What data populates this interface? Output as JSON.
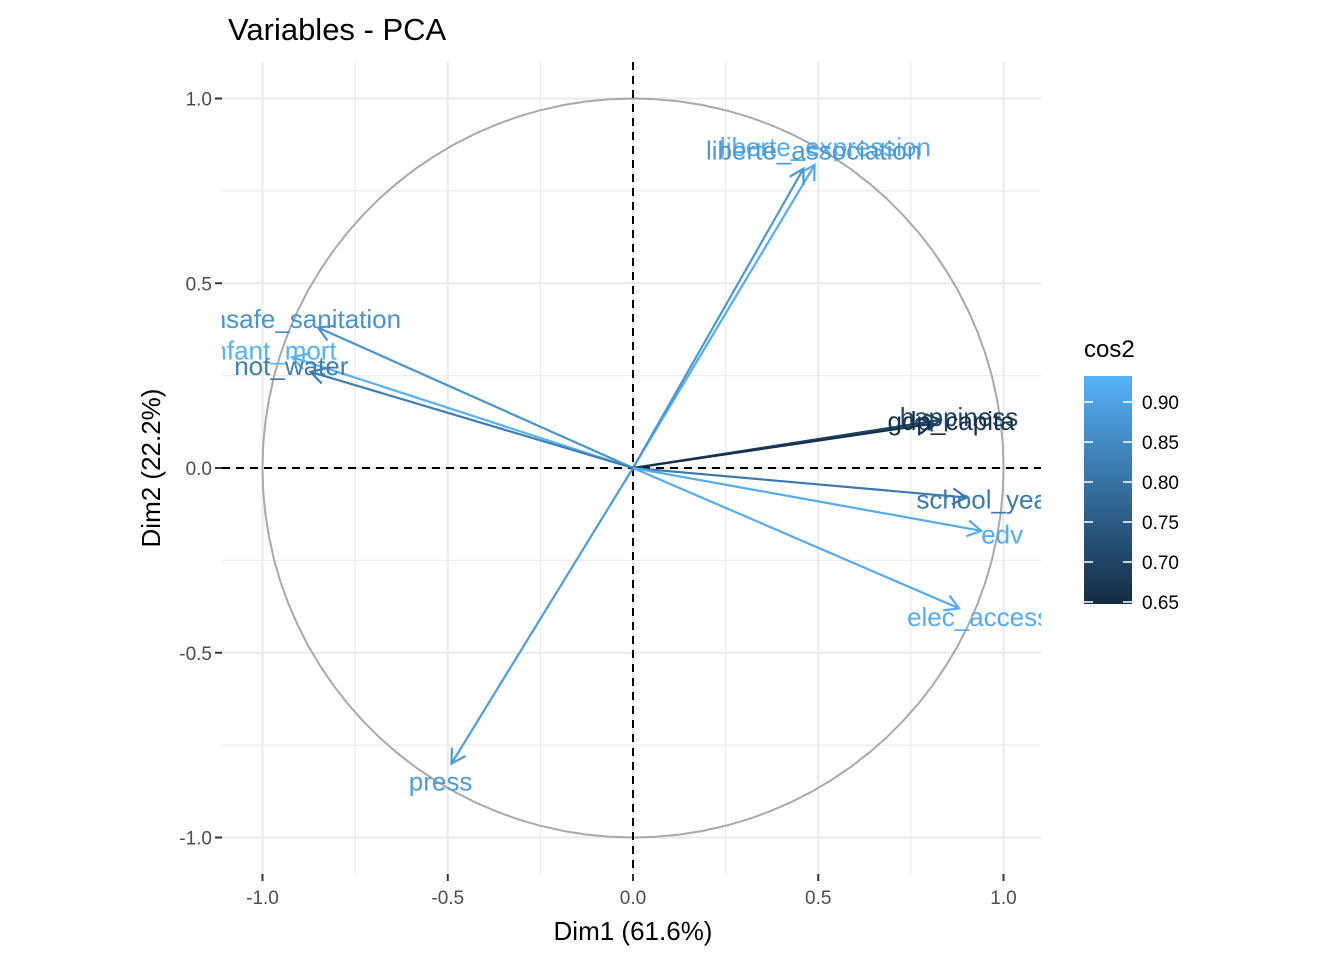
{
  "chart_data": {
    "type": "scatter",
    "subtype": "pca-variable-correlation-circle",
    "title": "Variables - PCA",
    "xlabel": "Dim1 (61.6%)",
    "ylabel": "Dim2 (22.2%)",
    "xlim": [
      -1.1,
      1.1
    ],
    "ylim": [
      -1.1,
      1.1
    ],
    "x_ticks": [
      -1.0,
      -0.5,
      0.0,
      0.5,
      1.0
    ],
    "y_ticks": [
      -1.0,
      -0.5,
      0.0,
      0.5,
      1.0
    ],
    "x_tick_labels": [
      "-1.0",
      "-0.5",
      "0.0",
      "0.5",
      "1.0"
    ],
    "y_tick_labels": [
      "-1.0",
      "-0.5",
      "0.0",
      "0.5",
      "1.0"
    ],
    "grid": true,
    "legend_position": "right",
    "color_scale": {
      "title": "cos2",
      "low": 0.65,
      "high": 0.92,
      "low_color": "#132B43",
      "high_color": "#56B1F7",
      "ticks": [
        0.9,
        0.85,
        0.8,
        0.75,
        0.7,
        0.65
      ],
      "tick_labels": [
        "0.90",
        "0.85",
        "0.80",
        "0.75",
        "0.70",
        "0.65"
      ]
    },
    "variables": [
      {
        "name": "liberte_expression",
        "x": 0.49,
        "y": 0.82,
        "cos2": 0.91
      },
      {
        "name": "liberte_association",
        "x": 0.46,
        "y": 0.81,
        "cos2": 0.87
      },
      {
        "name": "unsafe_sanitation",
        "x": -0.85,
        "y": 0.38,
        "cos2": 0.86
      },
      {
        "name": "infant_mort",
        "x": -0.92,
        "y": 0.3,
        "cos2": 0.92
      },
      {
        "name": "not_water",
        "x": -0.87,
        "y": 0.26,
        "cos2": 0.82
      },
      {
        "name": "happiness",
        "x": 0.83,
        "y": 0.13,
        "cos2": 0.7
      },
      {
        "name": "gdp_capita",
        "x": 0.81,
        "y": 0.12,
        "cos2": 0.66
      },
      {
        "name": "school_year",
        "x": 0.9,
        "y": -0.08,
        "cos2": 0.81
      },
      {
        "name": "edv",
        "x": 0.94,
        "y": -0.17,
        "cos2": 0.91
      },
      {
        "name": "elec_access",
        "x": 0.88,
        "y": -0.38,
        "cos2": 0.91
      },
      {
        "name": "press",
        "x": -0.49,
        "y": -0.8,
        "cos2": 0.88
      }
    ]
  }
}
